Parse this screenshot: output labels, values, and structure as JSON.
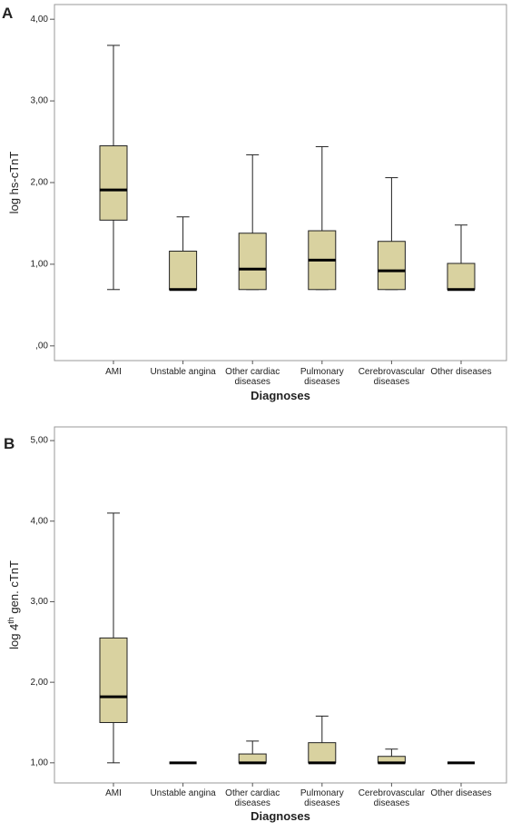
{
  "chart_data": [
    {
      "type": "box",
      "panel": "A",
      "ylabel": "log hs-cTnT",
      "xlabel": "Diagnoses",
      "color": "#d9d2a0",
      "categories": [
        [
          "AMI"
        ],
        [
          "Unstable angina"
        ],
        [
          "Other cardiac",
          "diseases"
        ],
        [
          "Pulmonary",
          "diseases"
        ],
        [
          "Cerebrovascular",
          "diseases"
        ],
        [
          "Other diseases"
        ]
      ],
      "boxes": [
        {
          "low": 0.69,
          "q1": 1.54,
          "median": 1.91,
          "q3": 2.45,
          "high": 3.68
        },
        {
          "low": 0.69,
          "q1": 0.69,
          "median": 0.69,
          "q3": 1.16,
          "high": 1.58
        },
        {
          "low": 0.69,
          "q1": 0.69,
          "median": 0.94,
          "q3": 1.38,
          "high": 2.34
        },
        {
          "low": 0.69,
          "q1": 0.69,
          "median": 1.05,
          "q3": 1.41,
          "high": 2.44
        },
        {
          "low": 0.69,
          "q1": 0.69,
          "median": 0.92,
          "q3": 1.28,
          "high": 2.06
        },
        {
          "low": 0.69,
          "q1": 0.69,
          "median": 0.69,
          "q3": 1.01,
          "high": 1.48
        }
      ],
      "ylim": [
        -0.18,
        4.18
      ],
      "yticks": [
        {
          "value": 0,
          "label": ",00"
        },
        {
          "value": 1,
          "label": "1,00"
        },
        {
          "value": 2,
          "label": "2,00"
        },
        {
          "value": 3,
          "label": "3,00"
        },
        {
          "value": 4,
          "label": "4,00"
        }
      ]
    },
    {
      "type": "box",
      "panel": "B",
      "ylabel": {
        "text": "log 4",
        "sup": "th",
        "rest": " gen. cTnT"
      },
      "xlabel": "Diagnoses",
      "color": "#d9d2a0",
      "categories": [
        [
          "AMI"
        ],
        [
          "Unstable angina"
        ],
        [
          "Other cardiac",
          "diseases"
        ],
        [
          "Pulmonary",
          "diseases"
        ],
        [
          "Cerebrovascular",
          "diseases"
        ],
        [
          "Other diseases"
        ]
      ],
      "boxes": [
        {
          "low": 1.0,
          "q1": 1.5,
          "median": 1.82,
          "q3": 2.55,
          "high": 4.1
        },
        {
          "low": 1.0,
          "q1": 1.0,
          "median": 1.0,
          "q3": 1.0,
          "high": 1.0
        },
        {
          "low": 1.0,
          "q1": 1.0,
          "median": 1.0,
          "q3": 1.11,
          "high": 1.27
        },
        {
          "low": 1.0,
          "q1": 1.0,
          "median": 1.0,
          "q3": 1.25,
          "high": 1.58
        },
        {
          "low": 1.0,
          "q1": 1.0,
          "median": 1.0,
          "q3": 1.08,
          "high": 1.17
        },
        {
          "low": 1.0,
          "q1": 1.0,
          "median": 1.0,
          "q3": 1.0,
          "high": 1.0
        }
      ],
      "ylim": [
        0.75,
        5.17
      ],
      "yticks": [
        {
          "value": 1,
          "label": "1,00"
        },
        {
          "value": 2,
          "label": "2,00"
        },
        {
          "value": 3,
          "label": "3,00"
        },
        {
          "value": 4,
          "label": "4,00"
        },
        {
          "value": 5,
          "label": "5,00"
        }
      ]
    }
  ]
}
